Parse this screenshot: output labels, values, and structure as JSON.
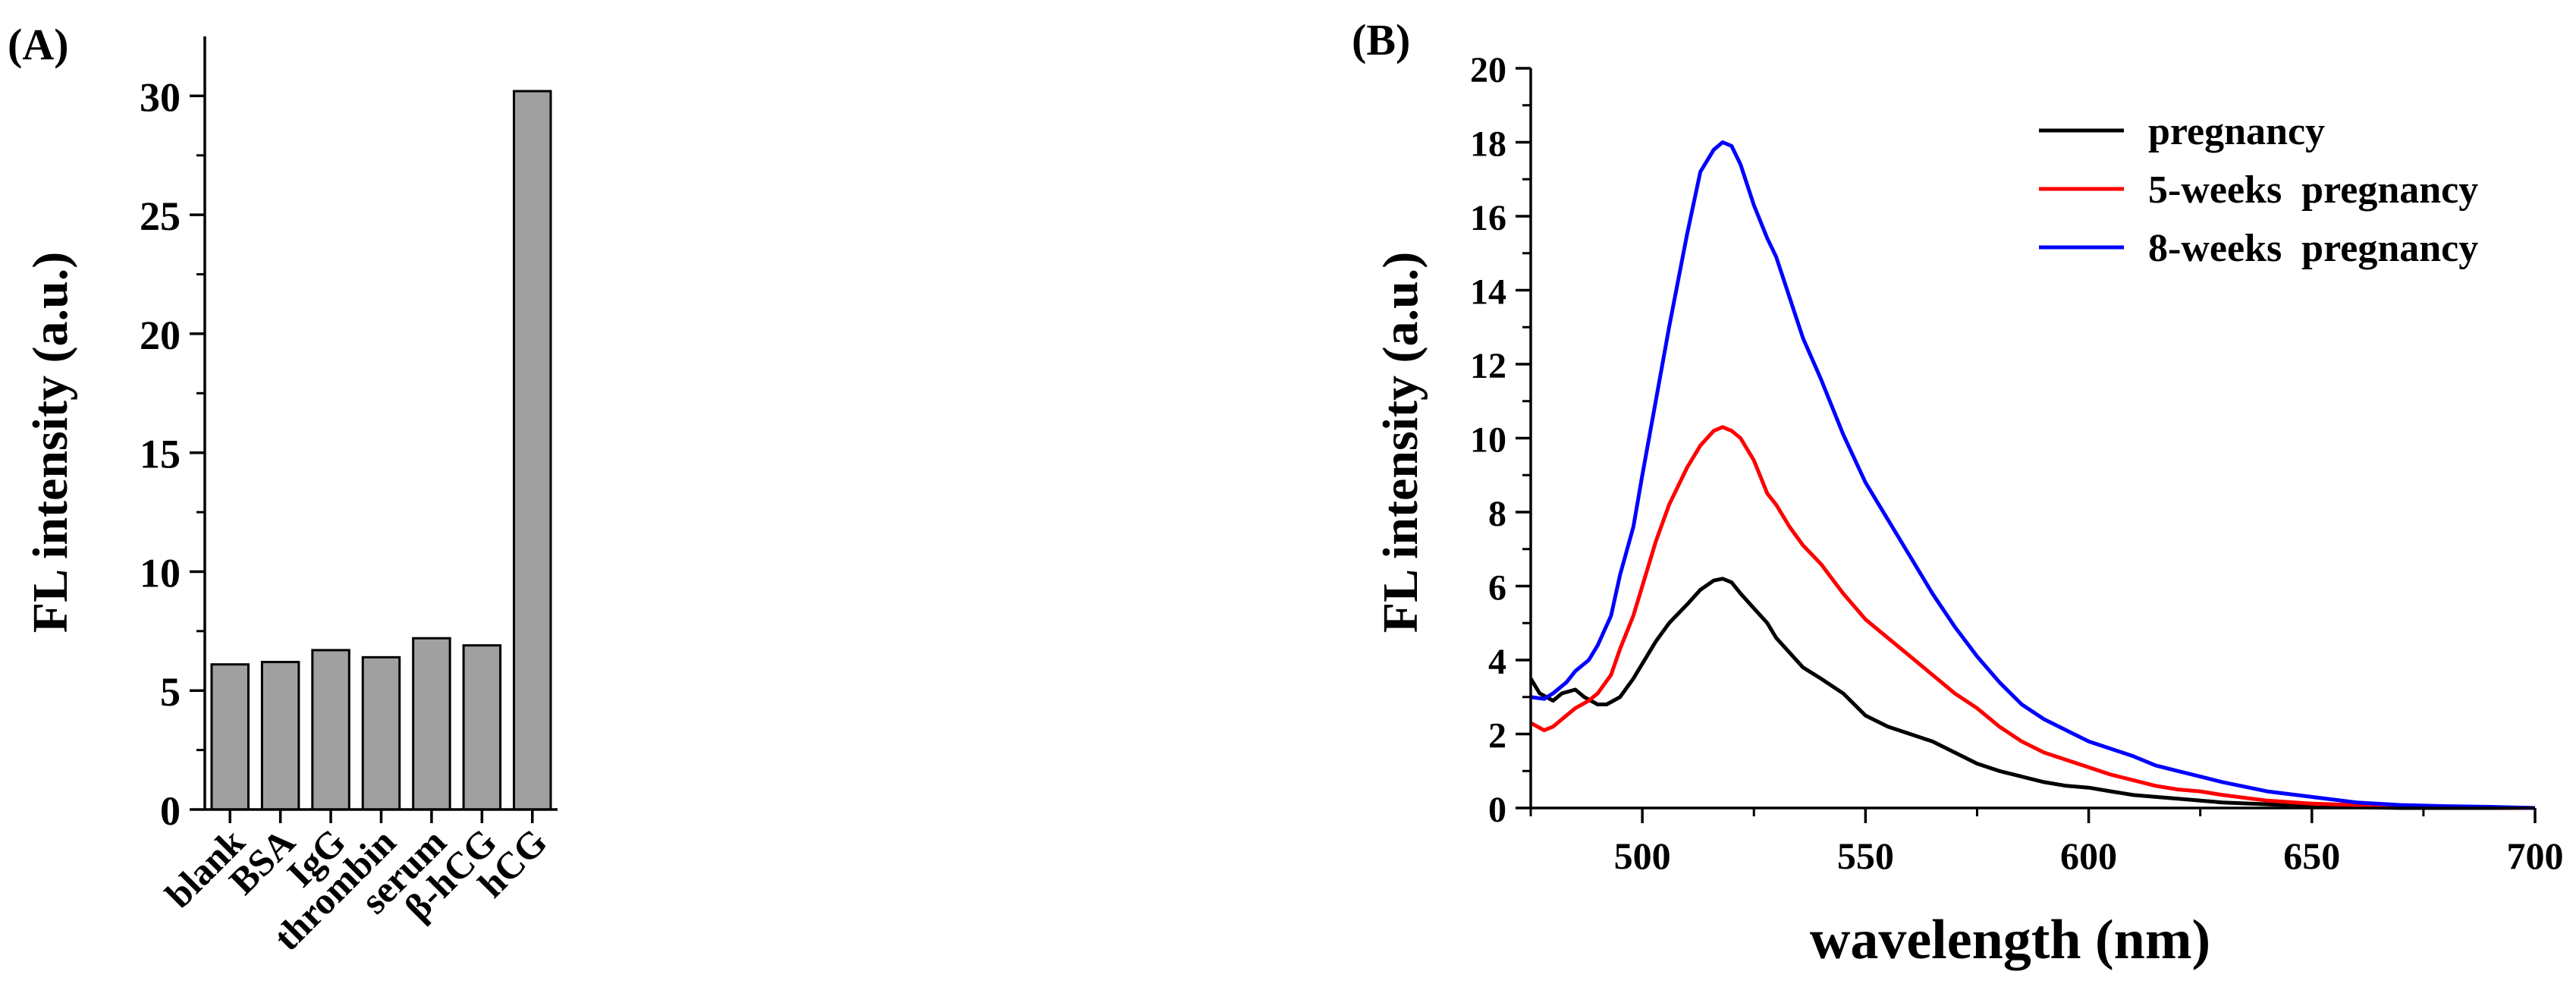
{
  "chart_data": [
    {
      "type": "bar",
      "panel_label": "(A)",
      "title": "",
      "xlabel": "",
      "ylabel": "FL intensity (a.u.)",
      "ylim": [
        0,
        32.5
      ],
      "yticks": [
        0,
        5,
        10,
        15,
        20,
        25,
        30
      ],
      "ytick_labels": [
        "0",
        "5",
        "10",
        "15",
        "20",
        "25",
        "30"
      ],
      "categories": [
        "blank",
        "BSA",
        "IgG",
        "thrombin",
        "serum",
        "β-hCG",
        "hCG"
      ],
      "values": [
        6.1,
        6.2,
        6.7,
        6.4,
        7.2,
        6.9,
        30.2
      ],
      "bar_color": "#a0a0a0",
      "grid": false
    },
    {
      "type": "line",
      "panel_label": "(B)",
      "title": "",
      "xlabel": "wavelength (nm)",
      "ylabel": "FL intensity (a.u.)",
      "xlim": [
        475,
        700
      ],
      "ylim": [
        0,
        20
      ],
      "xticks": [
        500,
        550,
        600,
        650,
        700
      ],
      "xtick_labels": [
        "500",
        "550",
        "600",
        "650",
        "700"
      ],
      "yticks": [
        0,
        2,
        4,
        6,
        8,
        10,
        12,
        14,
        16,
        18,
        20
      ],
      "ytick_labels": [
        "0",
        "2",
        "4",
        "6",
        "8",
        "10",
        "12",
        "14",
        "16",
        "18",
        "20"
      ],
      "legend_position": "top-right",
      "grid": false,
      "series": [
        {
          "name": "pregnancy",
          "color": "#000000",
          "x": [
            475,
            477,
            480,
            482,
            485,
            487,
            490,
            492,
            495,
            498,
            500,
            503,
            506,
            510,
            513,
            516,
            518,
            520,
            522,
            525,
            528,
            530,
            533,
            536,
            540,
            545,
            550,
            555,
            560,
            565,
            570,
            575,
            580,
            585,
            590,
            595,
            600,
            605,
            610,
            615,
            620,
            625,
            630,
            640,
            650,
            660,
            670,
            680,
            690,
            700
          ],
          "y": [
            3.5,
            3.1,
            2.9,
            3.1,
            3.2,
            3.0,
            2.8,
            2.8,
            3.0,
            3.5,
            3.9,
            4.5,
            5.0,
            5.5,
            5.9,
            6.15,
            6.2,
            6.1,
            5.8,
            5.4,
            5.0,
            4.6,
            4.2,
            3.8,
            3.5,
            3.1,
            2.5,
            2.2,
            2.0,
            1.8,
            1.5,
            1.2,
            1.0,
            0.85,
            0.7,
            0.6,
            0.55,
            0.45,
            0.35,
            0.3,
            0.25,
            0.2,
            0.15,
            0.1,
            0.05,
            0.02,
            0.0,
            0.0,
            0.0,
            0.0
          ]
        },
        {
          "name": "5-weeks  pregnancy",
          "color": "#ff0000",
          "x": [
            475,
            478,
            480,
            483,
            485,
            488,
            490,
            493,
            495,
            498,
            500,
            503,
            506,
            510,
            513,
            516,
            518,
            520,
            522,
            525,
            528,
            530,
            533,
            536,
            540,
            545,
            550,
            555,
            560,
            565,
            570,
            575,
            580,
            585,
            590,
            595,
            600,
            605,
            610,
            615,
            620,
            625,
            630,
            640,
            650,
            660,
            670,
            680,
            690,
            700
          ],
          "y": [
            2.3,
            2.1,
            2.2,
            2.5,
            2.7,
            2.9,
            3.1,
            3.6,
            4.3,
            5.2,
            6.0,
            7.2,
            8.2,
            9.2,
            9.8,
            10.2,
            10.3,
            10.2,
            10.0,
            9.4,
            8.5,
            8.2,
            7.6,
            7.1,
            6.6,
            5.8,
            5.1,
            4.6,
            4.1,
            3.6,
            3.1,
            2.7,
            2.2,
            1.8,
            1.5,
            1.3,
            1.1,
            0.9,
            0.75,
            0.6,
            0.5,
            0.45,
            0.35,
            0.2,
            0.12,
            0.08,
            0.05,
            0.03,
            0.02,
            0.0
          ]
        },
        {
          "name": "8-weeks  pregnancy",
          "color": "#0000ff",
          "x": [
            475,
            478,
            480,
            483,
            485,
            488,
            490,
            493,
            495,
            498,
            500,
            503,
            506,
            510,
            513,
            516,
            518,
            520,
            522,
            525,
            528,
            530,
            533,
            536,
            540,
            545,
            550,
            555,
            560,
            565,
            570,
            575,
            580,
            585,
            590,
            595,
            600,
            605,
            610,
            615,
            620,
            625,
            630,
            640,
            650,
            660,
            670,
            680,
            690,
            700
          ],
          "y": [
            3.0,
            2.95,
            3.1,
            3.4,
            3.7,
            4.0,
            4.4,
            5.2,
            6.3,
            7.6,
            9.0,
            11.0,
            13.0,
            15.5,
            17.2,
            17.8,
            18.0,
            17.9,
            17.4,
            16.3,
            15.4,
            14.9,
            13.8,
            12.7,
            11.6,
            10.1,
            8.8,
            7.8,
            6.8,
            5.8,
            4.9,
            4.1,
            3.4,
            2.8,
            2.4,
            2.1,
            1.8,
            1.6,
            1.4,
            1.15,
            1.0,
            0.85,
            0.7,
            0.45,
            0.3,
            0.15,
            0.08,
            0.05,
            0.03,
            0.0
          ]
        }
      ]
    }
  ]
}
